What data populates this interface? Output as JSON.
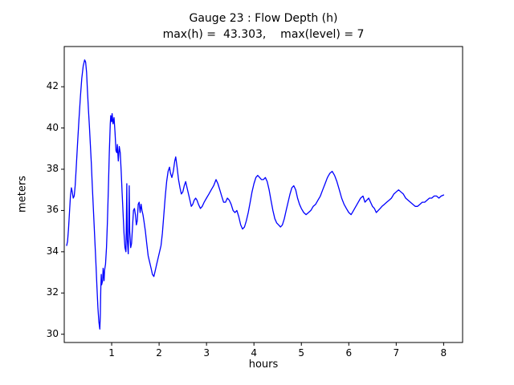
{
  "chart_data": {
    "type": "line",
    "title": "Gauge 23 : Flow Depth (h)",
    "subtitle": "max(h) =  43.303,    max(level) = 7",
    "xlabel": "hours",
    "ylabel": "meters",
    "xlim": [
      0.0,
      8.4
    ],
    "ylim": [
      29.6,
      43.95
    ],
    "x_ticks": [
      1,
      2,
      3,
      4,
      5,
      6,
      7,
      8
    ],
    "y_ticks": [
      30,
      32,
      34,
      36,
      38,
      40,
      42
    ],
    "grid": false,
    "legend": "none",
    "line_color": "#0000ff",
    "axis_color": "#000000",
    "background_color": "#ffffff",
    "max_h": 43.303,
    "max_level": 7,
    "series": [
      {
        "name": "flow-depth-h",
        "points": [
          [
            0.05,
            34.3
          ],
          [
            0.07,
            34.5
          ],
          [
            0.09,
            35.1
          ],
          [
            0.11,
            35.9
          ],
          [
            0.13,
            36.7
          ],
          [
            0.15,
            37.1
          ],
          [
            0.17,
            36.9
          ],
          [
            0.19,
            36.6
          ],
          [
            0.21,
            36.7
          ],
          [
            0.23,
            37.2
          ],
          [
            0.25,
            38.0
          ],
          [
            0.28,
            39.2
          ],
          [
            0.31,
            40.4
          ],
          [
            0.34,
            41.5
          ],
          [
            0.37,
            42.4
          ],
          [
            0.4,
            43.0
          ],
          [
            0.43,
            43.3
          ],
          [
            0.45,
            43.2
          ],
          [
            0.47,
            42.7
          ],
          [
            0.49,
            41.8
          ],
          [
            0.51,
            40.9
          ],
          [
            0.53,
            40.1
          ],
          [
            0.55,
            39.2
          ],
          [
            0.57,
            38.3
          ],
          [
            0.59,
            37.3
          ],
          [
            0.61,
            36.3
          ],
          [
            0.63,
            35.3
          ],
          [
            0.65,
            34.3
          ],
          [
            0.67,
            33.3
          ],
          [
            0.69,
            32.3
          ],
          [
            0.71,
            31.3
          ],
          [
            0.73,
            30.6
          ],
          [
            0.75,
            30.25
          ],
          [
            0.76,
            30.9
          ],
          [
            0.77,
            32.2
          ],
          [
            0.78,
            32.9
          ],
          [
            0.79,
            32.4
          ],
          [
            0.81,
            32.6
          ],
          [
            0.82,
            33.2
          ],
          [
            0.84,
            32.6
          ],
          [
            0.85,
            33.1
          ],
          [
            0.87,
            33.4
          ],
          [
            0.89,
            34.2
          ],
          [
            0.91,
            35.4
          ],
          [
            0.93,
            37.0
          ],
          [
            0.95,
            38.8
          ],
          [
            0.97,
            40.2
          ],
          [
            0.98,
            40.6
          ],
          [
            1.0,
            40.3
          ],
          [
            1.01,
            40.7
          ],
          [
            1.03,
            40.2
          ],
          [
            1.05,
            40.5
          ],
          [
            1.07,
            39.8
          ],
          [
            1.09,
            38.9
          ],
          [
            1.11,
            38.8
          ],
          [
            1.12,
            39.2
          ],
          [
            1.14,
            38.4
          ],
          [
            1.16,
            39.1
          ],
          [
            1.18,
            38.8
          ],
          [
            1.2,
            37.9
          ],
          [
            1.22,
            36.9
          ],
          [
            1.24,
            35.9
          ],
          [
            1.26,
            34.9
          ],
          [
            1.28,
            34.2
          ],
          [
            1.3,
            34.0
          ],
          [
            1.31,
            35.6
          ],
          [
            1.32,
            37.3
          ],
          [
            1.33,
            34.6
          ],
          [
            1.35,
            33.9
          ],
          [
            1.36,
            35.2
          ],
          [
            1.37,
            37.2
          ],
          [
            1.38,
            35.0
          ],
          [
            1.4,
            34.2
          ],
          [
            1.42,
            34.4
          ],
          [
            1.44,
            35.2
          ],
          [
            1.46,
            36.0
          ],
          [
            1.48,
            36.1
          ],
          [
            1.5,
            35.8
          ],
          [
            1.52,
            35.3
          ],
          [
            1.54,
            35.5
          ],
          [
            1.56,
            36.3
          ],
          [
            1.58,
            36.4
          ],
          [
            1.6,
            35.9
          ],
          [
            1.62,
            36.3
          ],
          [
            1.64,
            36.0
          ],
          [
            1.66,
            35.8
          ],
          [
            1.68,
            35.5
          ],
          [
            1.71,
            35.0
          ],
          [
            1.74,
            34.4
          ],
          [
            1.77,
            33.8
          ],
          [
            1.8,
            33.5
          ],
          [
            1.83,
            33.2
          ],
          [
            1.86,
            32.9
          ],
          [
            1.89,
            32.8
          ],
          [
            1.92,
            33.1
          ],
          [
            1.95,
            33.4
          ],
          [
            1.98,
            33.7
          ],
          [
            2.01,
            34.0
          ],
          [
            2.04,
            34.3
          ],
          [
            2.07,
            34.9
          ],
          [
            2.1,
            35.8
          ],
          [
            2.13,
            36.7
          ],
          [
            2.16,
            37.4
          ],
          [
            2.19,
            37.9
          ],
          [
            2.22,
            38.1
          ],
          [
            2.24,
            37.8
          ],
          [
            2.27,
            37.6
          ],
          [
            2.3,
            37.9
          ],
          [
            2.33,
            38.4
          ],
          [
            2.35,
            38.6
          ],
          [
            2.38,
            38.1
          ],
          [
            2.41,
            37.5
          ],
          [
            2.44,
            37.1
          ],
          [
            2.47,
            36.8
          ],
          [
            2.5,
            36.9
          ],
          [
            2.53,
            37.2
          ],
          [
            2.56,
            37.4
          ],
          [
            2.59,
            37.1
          ],
          [
            2.62,
            36.8
          ],
          [
            2.65,
            36.5
          ],
          [
            2.68,
            36.2
          ],
          [
            2.71,
            36.3
          ],
          [
            2.74,
            36.5
          ],
          [
            2.77,
            36.6
          ],
          [
            2.8,
            36.5
          ],
          [
            2.83,
            36.3
          ],
          [
            2.87,
            36.1
          ],
          [
            2.91,
            36.2
          ],
          [
            2.95,
            36.4
          ],
          [
            3.0,
            36.6
          ],
          [
            3.05,
            36.8
          ],
          [
            3.1,
            37.0
          ],
          [
            3.15,
            37.2
          ],
          [
            3.2,
            37.5
          ],
          [
            3.24,
            37.3
          ],
          [
            3.28,
            37.0
          ],
          [
            3.32,
            36.7
          ],
          [
            3.36,
            36.4
          ],
          [
            3.4,
            36.4
          ],
          [
            3.44,
            36.6
          ],
          [
            3.48,
            36.5
          ],
          [
            3.52,
            36.3
          ],
          [
            3.56,
            36.0
          ],
          [
            3.6,
            35.9
          ],
          [
            3.64,
            36.0
          ],
          [
            3.68,
            35.7
          ],
          [
            3.72,
            35.3
          ],
          [
            3.76,
            35.1
          ],
          [
            3.8,
            35.2
          ],
          [
            3.84,
            35.5
          ],
          [
            3.88,
            35.9
          ],
          [
            3.92,
            36.4
          ],
          [
            3.96,
            36.9
          ],
          [
            4.0,
            37.3
          ],
          [
            4.04,
            37.6
          ],
          [
            4.08,
            37.7
          ],
          [
            4.12,
            37.6
          ],
          [
            4.16,
            37.5
          ],
          [
            4.2,
            37.5
          ],
          [
            4.24,
            37.6
          ],
          [
            4.28,
            37.4
          ],
          [
            4.32,
            37.0
          ],
          [
            4.36,
            36.5
          ],
          [
            4.4,
            36.0
          ],
          [
            4.44,
            35.6
          ],
          [
            4.48,
            35.4
          ],
          [
            4.52,
            35.3
          ],
          [
            4.56,
            35.2
          ],
          [
            4.6,
            35.3
          ],
          [
            4.64,
            35.6
          ],
          [
            4.68,
            36.0
          ],
          [
            4.72,
            36.4
          ],
          [
            4.76,
            36.8
          ],
          [
            4.8,
            37.1
          ],
          [
            4.84,
            37.2
          ],
          [
            4.88,
            37.0
          ],
          [
            4.92,
            36.6
          ],
          [
            4.96,
            36.3
          ],
          [
            5.0,
            36.1
          ],
          [
            5.05,
            35.9
          ],
          [
            5.1,
            35.8
          ],
          [
            5.15,
            35.9
          ],
          [
            5.2,
            36.0
          ],
          [
            5.25,
            36.2
          ],
          [
            5.3,
            36.3
          ],
          [
            5.35,
            36.5
          ],
          [
            5.4,
            36.7
          ],
          [
            5.45,
            37.0
          ],
          [
            5.5,
            37.3
          ],
          [
            5.55,
            37.6
          ],
          [
            5.6,
            37.8
          ],
          [
            5.65,
            37.9
          ],
          [
            5.7,
            37.7
          ],
          [
            5.75,
            37.4
          ],
          [
            5.8,
            37.0
          ],
          [
            5.85,
            36.6
          ],
          [
            5.9,
            36.3
          ],
          [
            5.95,
            36.1
          ],
          [
            6.0,
            35.9
          ],
          [
            6.05,
            35.8
          ],
          [
            6.1,
            36.0
          ],
          [
            6.15,
            36.2
          ],
          [
            6.2,
            36.4
          ],
          [
            6.25,
            36.6
          ],
          [
            6.3,
            36.7
          ],
          [
            6.34,
            36.4
          ],
          [
            6.38,
            36.5
          ],
          [
            6.42,
            36.6
          ],
          [
            6.46,
            36.4
          ],
          [
            6.5,
            36.2
          ],
          [
            6.54,
            36.1
          ],
          [
            6.58,
            35.9
          ],
          [
            6.62,
            36.0
          ],
          [
            6.66,
            36.1
          ],
          [
            6.7,
            36.2
          ],
          [
            6.75,
            36.3
          ],
          [
            6.8,
            36.4
          ],
          [
            6.85,
            36.5
          ],
          [
            6.9,
            36.6
          ],
          [
            6.95,
            36.8
          ],
          [
            7.0,
            36.9
          ],
          [
            7.05,
            37.0
          ],
          [
            7.1,
            36.9
          ],
          [
            7.15,
            36.8
          ],
          [
            7.2,
            36.6
          ],
          [
            7.25,
            36.5
          ],
          [
            7.3,
            36.4
          ],
          [
            7.35,
            36.3
          ],
          [
            7.4,
            36.2
          ],
          [
            7.45,
            36.2
          ],
          [
            7.5,
            36.3
          ],
          [
            7.55,
            36.4
          ],
          [
            7.6,
            36.4
          ],
          [
            7.65,
            36.5
          ],
          [
            7.7,
            36.6
          ],
          [
            7.75,
            36.6
          ],
          [
            7.8,
            36.7
          ],
          [
            7.85,
            36.7
          ],
          [
            7.9,
            36.6
          ],
          [
            7.95,
            36.7
          ],
          [
            8.0,
            36.75
          ]
        ]
      }
    ]
  }
}
